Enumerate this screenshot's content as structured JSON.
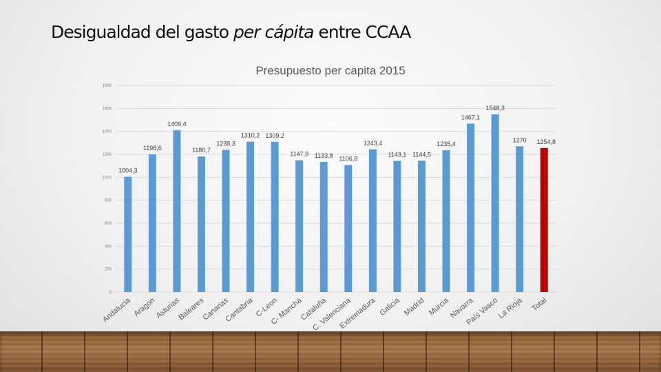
{
  "slide": {
    "title_before": "Desigualdad del gasto ",
    "title_em": "per cápita",
    "title_after": " entre CCAA"
  },
  "colors": {
    "bar": "#5b9bd5",
    "total_bar": "#c00000",
    "grid": "#d9d9d9"
  },
  "chart_data": {
    "type": "bar",
    "title": "Presupuesto per capita 2015",
    "xlabel": "",
    "ylabel": "",
    "ylim": [
      0,
      1800
    ],
    "yticks": [
      0,
      200,
      400,
      600,
      800,
      1000,
      1200,
      1400,
      1600,
      1800
    ],
    "grid": true,
    "legend": "none",
    "categories": [
      "Andalucia",
      "Aragon",
      "Asturias",
      "Baleares",
      "Canarias",
      "Cantabria",
      "C-Leon",
      "C- Mancha",
      "Cataluña",
      "C. Valenciana",
      "Extremadura",
      "Galicia",
      "Madrid",
      "Murcia",
      "Navarra",
      "País Vasco",
      "La Rioja",
      "Total"
    ],
    "values": [
      1004.3,
      1198.6,
      1409.4,
      1180.7,
      1238.3,
      1310.2,
      1309.2,
      1147.9,
      1133.8,
      1106.8,
      1243.4,
      1143.1,
      1144.5,
      1235.4,
      1467.1,
      1548.3,
      1270,
      1254.8
    ],
    "value_labels": [
      "1004,3",
      "1198,6",
      "1409,4",
      "1180,7",
      "1238,3",
      "1310,2",
      "1309,2",
      "1147,9",
      "1133,8",
      "1106,8",
      "1243,4",
      "1143,1",
      "1144,5",
      "1235,4",
      "1467,1",
      "1548,3",
      "1270",
      "1254,8"
    ],
    "highlight_category": "Total"
  }
}
